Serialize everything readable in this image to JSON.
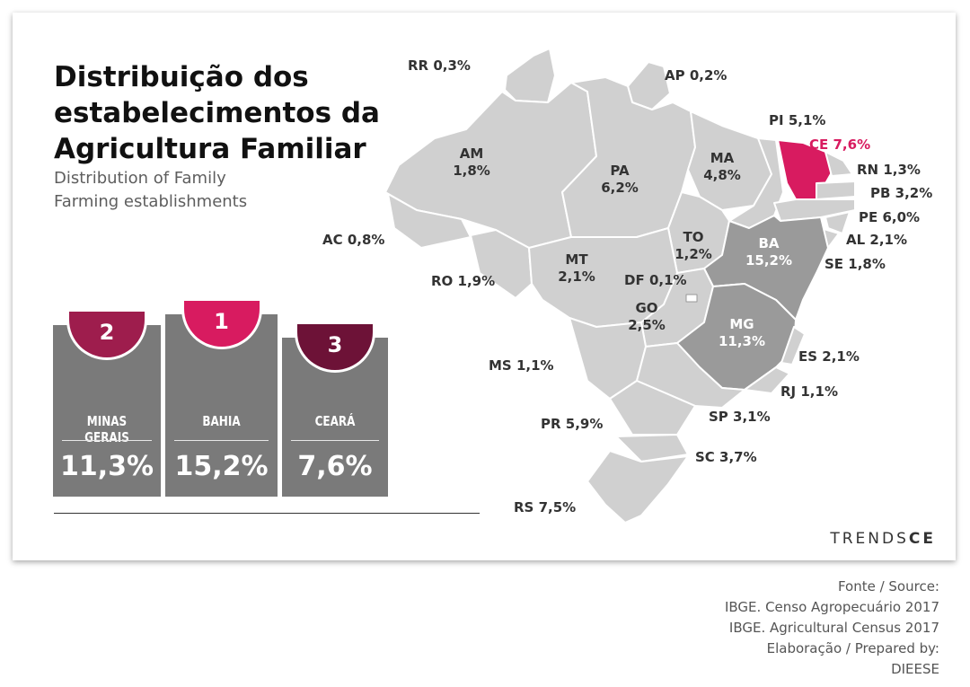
{
  "title_lines": [
    "Distribuição dos",
    "estabelecimentos da",
    "Agricultura Familiar"
  ],
  "subtitle_lines": [
    "Distribution of Family",
    "Farming establishments"
  ],
  "ranking": [
    {
      "rank": "2",
      "state": "MINAS GERAIS",
      "value": "11,3%",
      "color": "#9e1d4d"
    },
    {
      "rank": "1",
      "state": "BAHIA",
      "value": "15,2%",
      "color": "#d81b60"
    },
    {
      "rank": "3",
      "state": "CEARÁ",
      "value": "7,6%",
      "color": "#6d1237"
    }
  ],
  "map": {
    "colors": {
      "default": "#d0d0d0",
      "medium": "#9a9a9a",
      "highlight": "#d81b60",
      "border": "#ffffff"
    },
    "states": [
      {
        "code": "RR",
        "value": "0,3%"
      },
      {
        "code": "AP",
        "value": "0,2%"
      },
      {
        "code": "AM",
        "value": "1,8%"
      },
      {
        "code": "PA",
        "value": "6,2%"
      },
      {
        "code": "MA",
        "value": "4,8%"
      },
      {
        "code": "PI",
        "value": "5,1%"
      },
      {
        "code": "CE",
        "value": "7,6%"
      },
      {
        "code": "RN",
        "value": "1,3%"
      },
      {
        "code": "PB",
        "value": "3,2%"
      },
      {
        "code": "PE",
        "value": "6,0%"
      },
      {
        "code": "AL",
        "value": "2,1%"
      },
      {
        "code": "SE",
        "value": "1,8%"
      },
      {
        "code": "AC",
        "value": "0,8%"
      },
      {
        "code": "RO",
        "value": "1,9%"
      },
      {
        "code": "MT",
        "value": "2,1%"
      },
      {
        "code": "TO",
        "value": "1,2%"
      },
      {
        "code": "BA",
        "value": "15,2%"
      },
      {
        "code": "DF",
        "value": "0,1%"
      },
      {
        "code": "GO",
        "value": "2,5%"
      },
      {
        "code": "MG",
        "value": "11,3%"
      },
      {
        "code": "MS",
        "value": "1,1%"
      },
      {
        "code": "ES",
        "value": "2,1%"
      },
      {
        "code": "RJ",
        "value": "1,1%"
      },
      {
        "code": "SP",
        "value": "3,1%"
      },
      {
        "code": "PR",
        "value": "5,9%"
      },
      {
        "code": "SC",
        "value": "3,7%"
      },
      {
        "code": "RS",
        "value": "7,5%"
      }
    ]
  },
  "brand": {
    "left": "TRENDS",
    "right": "CE"
  },
  "source_lines": [
    "Fonte / Source:",
    "IBGE. Censo Agropecuário 2017",
    "IBGE. Agricultural Census 2017",
    "Elaboração / Prepared by:",
    "DIEESE"
  ]
}
